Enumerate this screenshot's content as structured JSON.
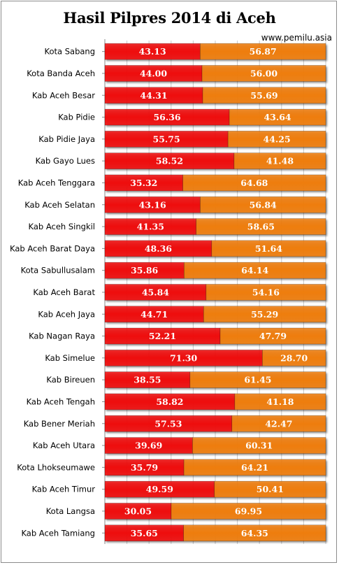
{
  "title": "Hasil Pilpres 2014 di Aceh",
  "source": "www.pemilu.asia",
  "colors": {
    "series1": "#ee1010",
    "series2": "#ee7d10",
    "gridline": "#c8c8c8",
    "background": "#ffffff"
  },
  "chart_data": {
    "type": "bar",
    "orientation": "horizontal",
    "stacked": true,
    "title": "Hasil Pilpres 2014 di Aceh",
    "xlim": [
      0,
      100
    ],
    "grid": true,
    "legend": "none",
    "categories": [
      "Kota Sabang",
      "Kota Banda Aceh",
      "Kab Aceh Besar",
      "Kab Pidie",
      "Kab Pidie Jaya",
      "Kab Gayo Lues",
      "Kab Aceh Tenggara",
      "Kab Aceh Selatan",
      "Kab Aceh Singkil",
      "Kab Aceh Barat Daya",
      "Kota Sabullusalam",
      "Kab Aceh Barat",
      "Kab Aceh Jaya",
      "Kab Nagan Raya",
      "Kab Simelue",
      "Kab Bireuen",
      "Kab Aceh Tengah",
      "Kab Bener Meriah",
      "Kab Aceh Utara",
      "Kota Lhokseumawe",
      "Kab Aceh Timur",
      "Kota Langsa",
      "Kab Aceh Tamiang"
    ],
    "series": [
      {
        "color": "#ee1010",
        "values": [
          "43.13",
          "44.00",
          "44.31",
          "56.36",
          "55.75",
          "58.52",
          "35.32",
          "43.16",
          "41.35",
          "48.36",
          "35.86",
          "45.84",
          "44.71",
          "52.21",
          "71.30",
          "38.55",
          "58.82",
          "57.53",
          "39.69",
          "35.79",
          "49.59",
          "30.05",
          "35.65"
        ]
      },
      {
        "color": "#ee7d10",
        "values": [
          "56.87",
          "56.00",
          "55.69",
          "43.64",
          "44.25",
          "41.48",
          "64.68",
          "56.84",
          "58.65",
          "51.64",
          "64.14",
          "54.16",
          "55.29",
          "47.79",
          "28.70",
          "61.45",
          "41.18",
          "42.47",
          "60.31",
          "64.21",
          "50.41",
          "69.95",
          "64.35"
        ]
      }
    ]
  }
}
